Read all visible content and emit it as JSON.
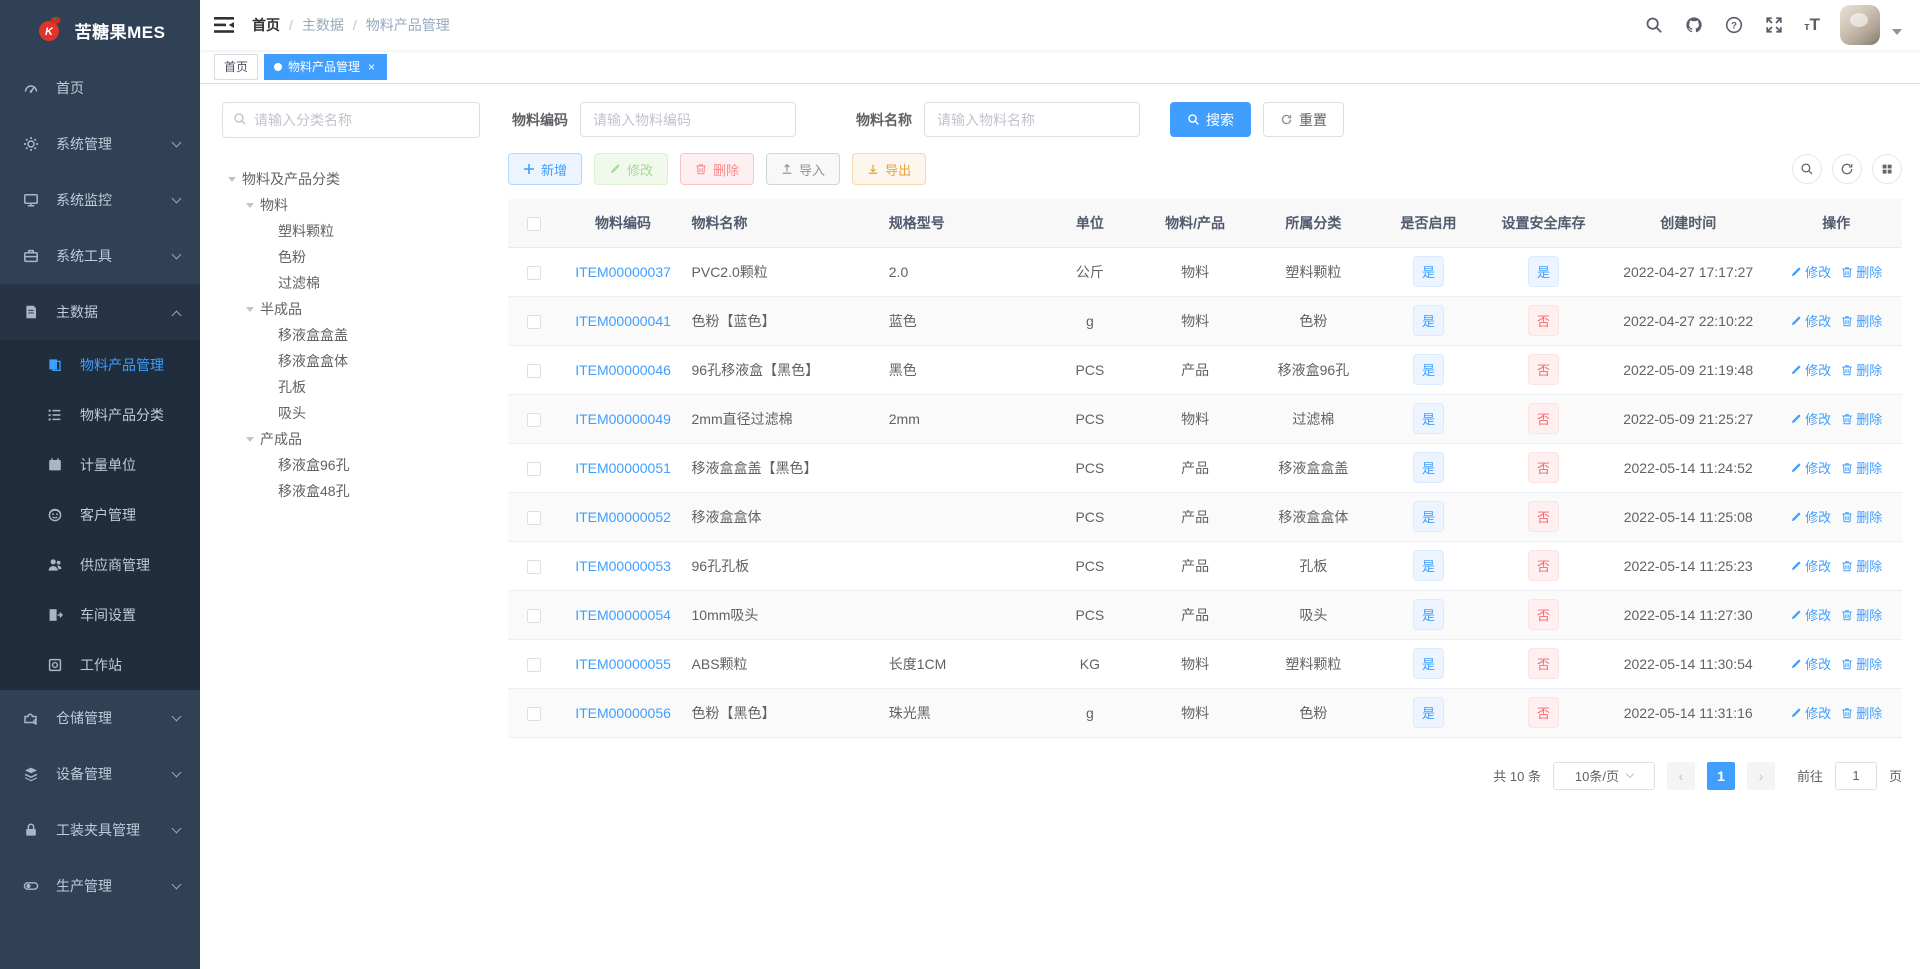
{
  "app": {
    "title": "苦糖果MES",
    "accent_color": "#409EFF"
  },
  "navbar": {
    "breadcrumb": [
      {
        "label": "首页"
      },
      {
        "label": "主数据"
      },
      {
        "label": "物料产品管理"
      }
    ]
  },
  "tabs": [
    {
      "label": "首页",
      "active": false,
      "closable": false
    },
    {
      "label": "物料产品管理",
      "active": true,
      "closable": true
    }
  ],
  "sidebar": {
    "menu": [
      {
        "label": "首页",
        "icon": "dashboard-icon"
      },
      {
        "label": "系统管理",
        "icon": "gear-icon",
        "arrow": "down"
      },
      {
        "label": "系统监控",
        "icon": "monitor-icon",
        "arrow": "down"
      },
      {
        "label": "系统工具",
        "icon": "toolbox-icon",
        "arrow": "down"
      },
      {
        "label": "主数据",
        "icon": "data-doc-icon",
        "arrow": "up",
        "open": true,
        "children": [
          {
            "label": "物料产品管理",
            "icon": "material-manage-icon",
            "active": true
          },
          {
            "label": "物料产品分类",
            "icon": "category-list-icon"
          },
          {
            "label": "计量单位",
            "icon": "unit-icon"
          },
          {
            "label": "客户管理",
            "icon": "customer-icon"
          },
          {
            "label": "供应商管理",
            "icon": "supplier-icon"
          },
          {
            "label": "车间设置",
            "icon": "workshop-icon"
          },
          {
            "label": "工作站",
            "icon": "workstation-icon"
          }
        ]
      },
      {
        "label": "仓储管理",
        "icon": "warehouse-icon",
        "arrow": "down"
      },
      {
        "label": "设备管理",
        "icon": "equipment-icon",
        "arrow": "down"
      },
      {
        "label": "工装夹具管理",
        "icon": "fixture-icon",
        "arrow": "down"
      },
      {
        "label": "生产管理",
        "icon": "production-icon",
        "arrow": "down"
      }
    ]
  },
  "tree_panel": {
    "search_placeholder": "请输入分类名称",
    "nodes": [
      {
        "label": "物料及产品分类",
        "level": 0,
        "expandable": true
      },
      {
        "label": "物料",
        "level": 1,
        "expandable": true
      },
      {
        "label": "塑料颗粒",
        "level": 2,
        "expandable": false
      },
      {
        "label": "色粉",
        "level": 2,
        "expandable": false
      },
      {
        "label": "过滤棉",
        "level": 2,
        "expandable": false
      },
      {
        "label": "半成品",
        "level": 1,
        "expandable": true
      },
      {
        "label": "移液盒盒盖",
        "level": 2,
        "expandable": false
      },
      {
        "label": "移液盒盒体",
        "level": 2,
        "expandable": false
      },
      {
        "label": "孔板",
        "level": 2,
        "expandable": false
      },
      {
        "label": "吸头",
        "level": 2,
        "expandable": false
      },
      {
        "label": "产成品",
        "level": 1,
        "expandable": true
      },
      {
        "label": "移液盒96孔",
        "level": 2,
        "expandable": false
      },
      {
        "label": "移液盒48孔",
        "level": 2,
        "expandable": false
      }
    ]
  },
  "filter": {
    "code_label": "物料编码",
    "code_placeholder": "请输入物料编码",
    "name_label": "物料名称",
    "name_placeholder": "请输入物料名称",
    "search_label": "搜索",
    "reset_label": "重置"
  },
  "toolbar": {
    "add_label": "新增",
    "edit_label": "修改",
    "delete_label": "删除",
    "import_label": "导入",
    "export_label": "导出"
  },
  "table": {
    "columns": [
      "物料编码",
      "物料名称",
      "规格型号",
      "单位",
      "物料/产品",
      "所属分类",
      "是否启用",
      "设置安全库存",
      "创建时间",
      "操作"
    ],
    "badge_yes": "是",
    "badge_no": "否",
    "row_actions": {
      "edit": "修改",
      "delete": "删除"
    },
    "rows": [
      {
        "code": "ITEM00000037",
        "name": "PVC2.0颗粒",
        "spec": "2.0",
        "unit": "公斤",
        "type": "物料",
        "category": "塑料颗粒",
        "enabled": "是",
        "safety_stock": "是",
        "created": "2022-04-27 17:17:27"
      },
      {
        "code": "ITEM00000041",
        "name": "色粉【蓝色】",
        "spec": "蓝色",
        "unit": "g",
        "type": "物料",
        "category": "色粉",
        "enabled": "是",
        "safety_stock": "否",
        "created": "2022-04-27 22:10:22"
      },
      {
        "code": "ITEM00000046",
        "name": "96孔移液盒【黑色】",
        "spec": "黑色",
        "unit": "PCS",
        "type": "产品",
        "category": "移液盒96孔",
        "enabled": "是",
        "safety_stock": "否",
        "created": "2022-05-09 21:19:48"
      },
      {
        "code": "ITEM00000049",
        "name": "2mm直径过滤棉",
        "spec": "2mm",
        "unit": "PCS",
        "type": "物料",
        "category": "过滤棉",
        "enabled": "是",
        "safety_stock": "否",
        "created": "2022-05-09 21:25:27"
      },
      {
        "code": "ITEM00000051",
        "name": "移液盒盒盖【黑色】",
        "spec": "",
        "unit": "PCS",
        "type": "产品",
        "category": "移液盒盒盖",
        "enabled": "是",
        "safety_stock": "否",
        "created": "2022-05-14 11:24:52"
      },
      {
        "code": "ITEM00000052",
        "name": "移液盒盒体",
        "spec": "",
        "unit": "PCS",
        "type": "产品",
        "category": "移液盒盒体",
        "enabled": "是",
        "safety_stock": "否",
        "created": "2022-05-14 11:25:08"
      },
      {
        "code": "ITEM00000053",
        "name": "96孔孔板",
        "spec": "",
        "unit": "PCS",
        "type": "产品",
        "category": "孔板",
        "enabled": "是",
        "safety_stock": "否",
        "created": "2022-05-14 11:25:23"
      },
      {
        "code": "ITEM00000054",
        "name": "10mm吸头",
        "spec": "",
        "unit": "PCS",
        "type": "产品",
        "category": "吸头",
        "enabled": "是",
        "safety_stock": "否",
        "created": "2022-05-14 11:27:30"
      },
      {
        "code": "ITEM00000055",
        "name": "ABS颗粒",
        "spec": "长度1CM",
        "unit": "KG",
        "type": "物料",
        "category": "塑料颗粒",
        "enabled": "是",
        "safety_stock": "否",
        "created": "2022-05-14 11:30:54"
      },
      {
        "code": "ITEM00000056",
        "name": "色粉【黑色】",
        "spec": "珠光黑",
        "unit": "g",
        "type": "物料",
        "category": "色粉",
        "enabled": "是",
        "safety_stock": "否",
        "created": "2022-05-14 11:31:16"
      }
    ]
  },
  "pagination": {
    "total_text": "共 10 条",
    "page_size": "10条/页",
    "current_page": "1",
    "goto_label": "前往",
    "goto_value": "1",
    "page_suffix": "页"
  }
}
